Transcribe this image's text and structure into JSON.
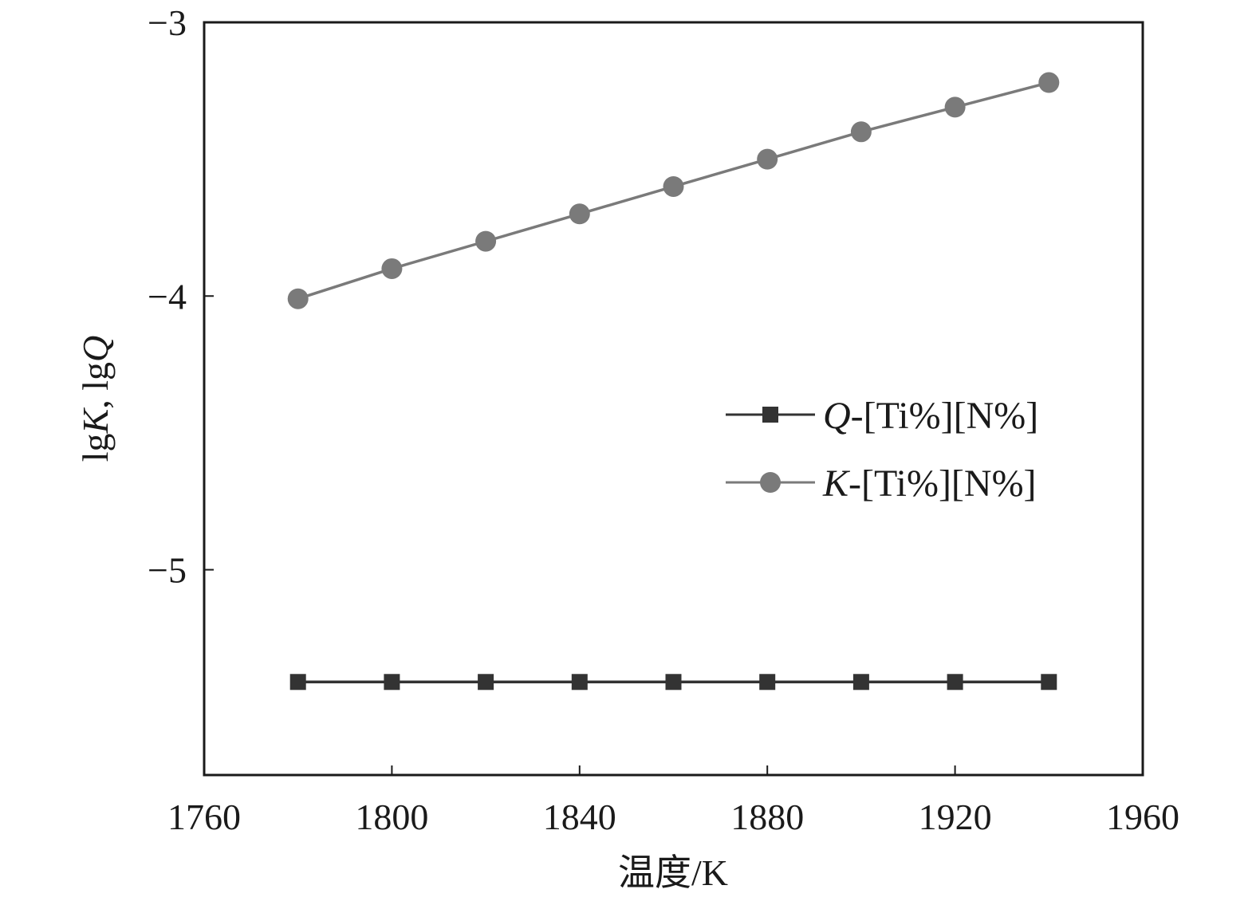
{
  "chart_data": {
    "type": "line",
    "title": "",
    "xlabel": "温度/K",
    "ylabel_parts": [
      {
        "text": "lg",
        "italic": false
      },
      {
        "text": "K",
        "italic": true
      },
      {
        "text": ", lg",
        "italic": false
      },
      {
        "text": "Q",
        "italic": true
      }
    ],
    "xlim": [
      1760,
      1960
    ],
    "ylim": [
      -5.75,
      -3
    ],
    "x_ticks": [
      1760,
      1800,
      1840,
      1880,
      1920,
      1960
    ],
    "y_ticks": [
      -3,
      -4,
      -5
    ],
    "y_tick_labels": [
      "−3",
      "−4",
      "−5"
    ],
    "grid": false,
    "legend_position": "center-right",
    "series": [
      {
        "name_prefix": "Q",
        "name_suffix": "-[Ti%][N%]",
        "marker": "square",
        "color": "#333333",
        "x": [
          1780,
          1800,
          1820,
          1840,
          1860,
          1880,
          1900,
          1920,
          1940
        ],
        "y": [
          -5.41,
          -5.41,
          -5.41,
          -5.41,
          -5.41,
          -5.41,
          -5.41,
          -5.41,
          -5.41
        ]
      },
      {
        "name_prefix": "K",
        "name_suffix": "-[Ti%][N%]",
        "marker": "circle",
        "color": "#7a7a7a",
        "x": [
          1780,
          1800,
          1820,
          1840,
          1860,
          1880,
          1900,
          1920,
          1940
        ],
        "y": [
          -4.01,
          -3.9,
          -3.8,
          -3.7,
          -3.6,
          -3.5,
          -3.4,
          -3.31,
          -3.22
        ]
      }
    ]
  }
}
